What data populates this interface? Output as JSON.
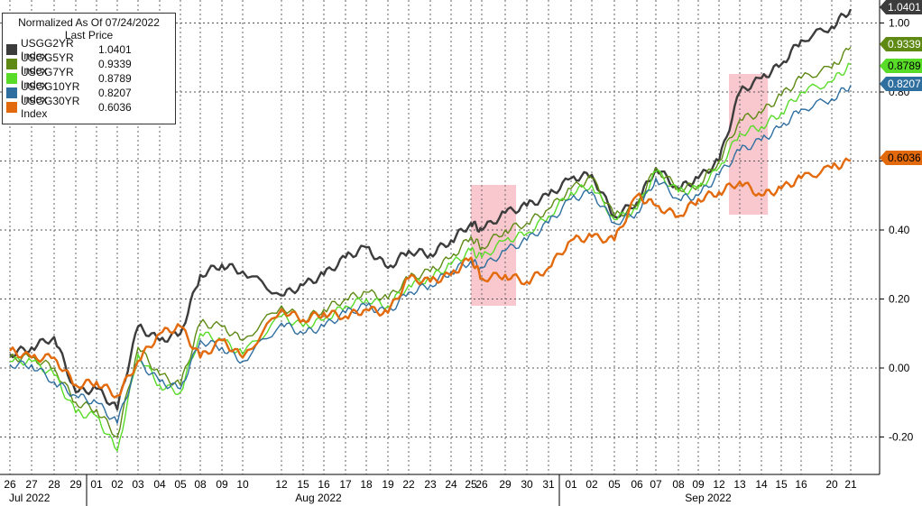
{
  "chart_data": {
    "type": "line",
    "legend": {
      "header": "Normalized As Of 07/24/2022",
      "subheader": "Last Price",
      "placement": "top-left"
    },
    "ylim": [
      -0.3,
      1.05
    ],
    "yticks": [
      -0.2,
      0.0,
      0.2,
      0.4,
      0.6,
      0.8,
      1.0
    ],
    "ytick_labels": [
      "-0.20",
      "0.00",
      "0.20",
      "0.40",
      "0.60",
      "0.80",
      "1.00"
    ],
    "grid": true,
    "x_day_labels": [
      "26",
      "27",
      "28",
      "29",
      "01",
      "02",
      "03",
      "04",
      "05",
      "08",
      "09",
      "10",
      "12",
      "15",
      "16",
      "17",
      "18",
      "19",
      "22",
      "23",
      "24",
      "25",
      "26",
      "29",
      "30",
      "31",
      "01",
      "02",
      "05",
      "06",
      "07",
      "08",
      "09",
      "12",
      "13",
      "14",
      "15",
      "16",
      "20",
      "21"
    ],
    "months": [
      "Jul 2022",
      "Aug 2022",
      "Sep 2022"
    ],
    "series": [
      {
        "name": "USGG2YR Index",
        "last": "1.0401",
        "color": "#3c3c3c",
        "values": [
          0.04,
          0.06,
          0.09,
          -0.07,
          -0.06,
          -0.12,
          0.12,
          0.08,
          0.1,
          0.27,
          0.3,
          0.28,
          0.21,
          0.24,
          0.27,
          0.32,
          0.35,
          0.29,
          0.34,
          0.33,
          0.37,
          0.42,
          0.4,
          0.45,
          0.47,
          0.5,
          0.55,
          0.56,
          0.44,
          0.48,
          0.58,
          0.52,
          0.55,
          0.6,
          0.8,
          0.84,
          0.88,
          0.95,
          0.99,
          1.04
        ]
      },
      {
        "name": "USGG5YR Index",
        "last": "0.9339",
        "color": "#5e8a14",
        "values": [
          0.03,
          0.03,
          0.0,
          -0.1,
          -0.12,
          -0.2,
          0.06,
          -0.02,
          -0.05,
          0.13,
          0.12,
          0.08,
          0.18,
          0.14,
          0.17,
          0.2,
          0.22,
          0.2,
          0.26,
          0.28,
          0.32,
          0.38,
          0.35,
          0.4,
          0.42,
          0.46,
          0.52,
          0.55,
          0.44,
          0.47,
          0.58,
          0.52,
          0.53,
          0.6,
          0.72,
          0.74,
          0.79,
          0.84,
          0.87,
          0.93
        ]
      },
      {
        "name": "USGG7YR Index",
        "last": "0.8789",
        "color": "#58dc28",
        "values": [
          0.02,
          0.02,
          -0.02,
          -0.13,
          -0.14,
          -0.24,
          0.04,
          -0.05,
          -0.07,
          0.1,
          0.08,
          0.04,
          0.15,
          0.12,
          0.14,
          0.18,
          0.2,
          0.18,
          0.24,
          0.26,
          0.3,
          0.34,
          0.32,
          0.37,
          0.39,
          0.44,
          0.51,
          0.53,
          0.43,
          0.46,
          0.57,
          0.51,
          0.52,
          0.58,
          0.68,
          0.7,
          0.74,
          0.8,
          0.83,
          0.88
        ]
      },
      {
        "name": "USGG10YR Index",
        "last": "0.8207",
        "color": "#2f6fa0",
        "values": [
          0.01,
          0.01,
          -0.04,
          -0.08,
          -0.1,
          -0.16,
          0.02,
          -0.04,
          -0.06,
          0.08,
          0.06,
          0.02,
          0.13,
          0.1,
          0.12,
          0.16,
          0.18,
          0.16,
          0.22,
          0.24,
          0.28,
          0.31,
          0.29,
          0.34,
          0.37,
          0.42,
          0.49,
          0.51,
          0.42,
          0.45,
          0.55,
          0.49,
          0.5,
          0.56,
          0.63,
          0.66,
          0.7,
          0.75,
          0.78,
          0.82
        ]
      },
      {
        "name": "USGG30YR Index",
        "last": "0.6036",
        "color": "#e36a0c",
        "values": [
          0.05,
          0.03,
          0.03,
          -0.05,
          -0.04,
          -0.08,
          0.02,
          0.1,
          0.12,
          0.03,
          0.08,
          0.03,
          0.17,
          0.14,
          0.16,
          0.15,
          0.17,
          0.16,
          0.26,
          0.25,
          0.27,
          0.32,
          0.26,
          0.27,
          0.25,
          0.29,
          0.37,
          0.38,
          0.37,
          0.5,
          0.47,
          0.44,
          0.49,
          0.51,
          0.54,
          0.5,
          0.52,
          0.55,
          0.58,
          0.6
        ]
      }
    ],
    "highlights": [
      {
        "from": 22,
        "to": 23
      },
      {
        "from": 34,
        "to": 34.8
      }
    ]
  }
}
